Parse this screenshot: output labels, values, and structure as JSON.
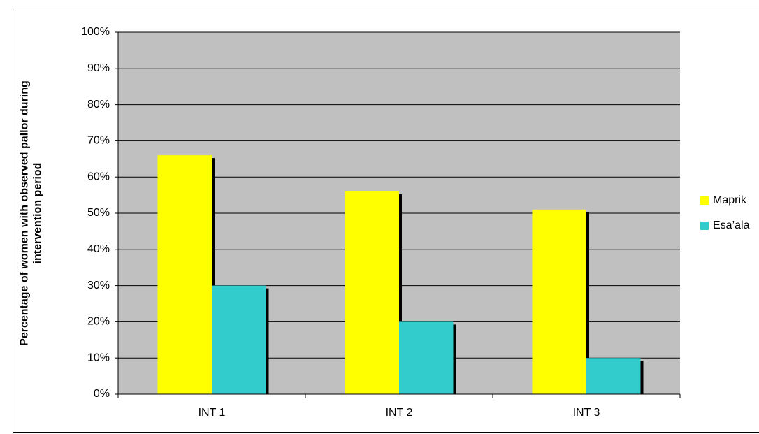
{
  "chart_data": {
    "type": "bar",
    "ylabel_lines": [
      "Percentage of women with observed pallor during",
      "intervention period"
    ],
    "categories": [
      "INT 1",
      "INT 2",
      "INT 3"
    ],
    "series": [
      {
        "name": "Maprik",
        "color": "#ffff00",
        "values": [
          66,
          56,
          51
        ]
      },
      {
        "name": "Esa’ala",
        "color": "#33cccc",
        "values": [
          30,
          20,
          10
        ]
      }
    ],
    "ylim": [
      0,
      100
    ],
    "yticks": [
      {
        "value": 0,
        "label": "0%"
      },
      {
        "value": 10,
        "label": "10%"
      },
      {
        "value": 20,
        "label": "20%"
      },
      {
        "value": 30,
        "label": "30%"
      },
      {
        "value": 40,
        "label": "40%"
      },
      {
        "value": 50,
        "label": "50%"
      },
      {
        "value": 60,
        "label": "60%"
      },
      {
        "value": 70,
        "label": "70%"
      },
      {
        "value": 80,
        "label": "80%"
      },
      {
        "value": 90,
        "label": "90%"
      },
      {
        "value": 100,
        "label": "100%"
      }
    ],
    "grid": true,
    "plot_background": "#c0c0c0",
    "legend": "right"
  }
}
